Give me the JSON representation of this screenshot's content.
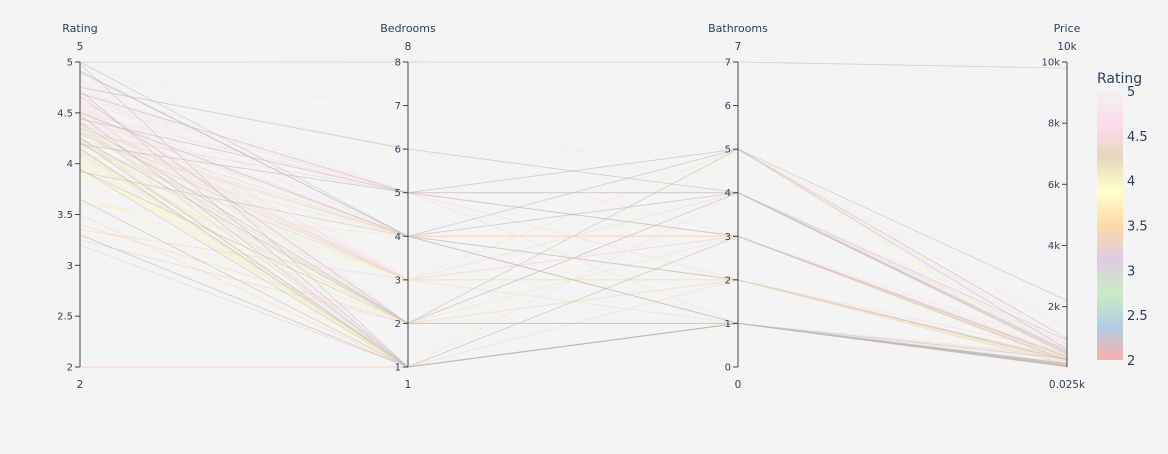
{
  "chart_data": {
    "type": "parallel_coordinates",
    "dimensions": [
      {
        "label": "Rating",
        "range": [
          2,
          5
        ],
        "range_labels": [
          "2",
          "5"
        ],
        "ticks": [
          {
            "value": 2,
            "label": "2"
          },
          {
            "value": 2.5,
            "label": "2.5"
          },
          {
            "value": 3,
            "label": "3"
          },
          {
            "value": 3.5,
            "label": "3.5"
          },
          {
            "value": 4,
            "label": "4"
          },
          {
            "value": 4.5,
            "label": "4.5"
          },
          {
            "value": 5,
            "label": "5"
          }
        ]
      },
      {
        "label": "Bedrooms",
        "range": [
          1,
          8
        ],
        "range_labels": [
          "1",
          "8"
        ],
        "ticks": [
          {
            "value": 1,
            "label": "1"
          },
          {
            "value": 2,
            "label": "2"
          },
          {
            "value": 3,
            "label": "3"
          },
          {
            "value": 4,
            "label": "4"
          },
          {
            "value": 5,
            "label": "5"
          },
          {
            "value": 6,
            "label": "6"
          },
          {
            "value": 7,
            "label": "7"
          },
          {
            "value": 8,
            "label": "8"
          }
        ]
      },
      {
        "label": "Bathrooms",
        "range": [
          0,
          7
        ],
        "range_labels": [
          "0",
          "7"
        ],
        "ticks": [
          {
            "value": 0,
            "label": "0"
          },
          {
            "value": 1,
            "label": "1"
          },
          {
            "value": 2,
            "label": "2"
          },
          {
            "value": 3,
            "label": "3"
          },
          {
            "value": 4,
            "label": "4"
          },
          {
            "value": 5,
            "label": "5"
          },
          {
            "value": 6,
            "label": "6"
          },
          {
            "value": 7,
            "label": "7"
          }
        ]
      },
      {
        "label": "Price",
        "range": [
          25,
          10000
        ],
        "range_labels": [
          "0.025k",
          "10k"
        ],
        "ticks": [
          {
            "value": 2000,
            "label": "2k"
          },
          {
            "value": 4000,
            "label": "4k"
          },
          {
            "value": 6000,
            "label": "6k"
          },
          {
            "value": 8000,
            "label": "8k"
          },
          {
            "value": 10000,
            "label": "10k"
          }
        ]
      }
    ],
    "colorbar": {
      "title": "Rating",
      "range": [
        2,
        5
      ],
      "ticks": [
        {
          "value": 2,
          "label": "2"
        },
        {
          "value": 2.5,
          "label": "2.5"
        },
        {
          "value": 3,
          "label": "3"
        },
        {
          "value": 3.5,
          "label": "3.5"
        },
        {
          "value": 4,
          "label": "4"
        },
        {
          "value": 4.5,
          "label": "4.5"
        },
        {
          "value": 5,
          "label": "5"
        }
      ],
      "colorscale": [
        "#f8b0ad",
        "#b3cde3",
        "#ccebc5",
        "#decbe4",
        "#fed9a6",
        "#ffffcc",
        "#e5d8bd",
        "#fddaec",
        "#f2f2f2"
      ]
    },
    "lines": [
      [
        5,
        8,
        7,
        9800
      ],
      [
        4.95,
        8,
        5,
        300
      ],
      [
        4.9,
        7,
        5,
        450
      ],
      [
        4.85,
        7,
        4,
        600
      ],
      [
        4.8,
        6,
        5,
        700
      ],
      [
        4.75,
        6,
        4,
        500
      ],
      [
        4.7,
        5,
        3,
        400
      ],
      [
        4.65,
        5,
        4,
        800
      ],
      [
        4.6,
        5,
        3,
        350
      ],
      [
        4.55,
        4,
        3,
        300
      ],
      [
        4.5,
        4,
        2,
        250
      ],
      [
        4.45,
        4,
        3,
        420
      ],
      [
        4.4,
        3,
        2,
        200
      ],
      [
        4.35,
        3,
        2,
        180
      ],
      [
        4.3,
        3,
        1,
        150
      ],
      [
        4.25,
        2,
        1,
        120
      ],
      [
        4.2,
        2,
        1,
        100
      ],
      [
        4.15,
        1,
        1,
        90
      ],
      [
        4.1,
        1,
        1,
        80
      ],
      [
        4.05,
        1,
        1,
        70
      ],
      [
        4.98,
        1,
        1,
        110
      ],
      [
        4.92,
        2,
        1,
        140
      ],
      [
        4.88,
        3,
        2,
        260
      ],
      [
        4.82,
        4,
        2,
        320
      ],
      [
        4.78,
        5,
        3,
        500
      ],
      [
        4.72,
        1,
        1,
        95
      ],
      [
        4.68,
        2,
        2,
        170
      ],
      [
        4.62,
        3,
        2,
        220
      ],
      [
        4.58,
        1,
        1,
        85
      ],
      [
        4.52,
        2,
        1,
        130
      ],
      [
        4.48,
        1,
        1,
        75
      ],
      [
        4.42,
        3,
        3,
        300
      ],
      [
        4.38,
        1,
        1,
        65
      ],
      [
        4.32,
        2,
        1,
        105
      ],
      [
        4.28,
        4,
        3,
        380
      ],
      [
        4.22,
        1,
        1,
        60
      ],
      [
        4.18,
        3,
        2,
        190
      ],
      [
        4.12,
        1,
        1,
        55
      ],
      [
        4.08,
        2,
        1,
        115
      ],
      [
        4.02,
        1,
        1,
        50
      ],
      [
        3.95,
        1,
        1,
        60
      ],
      [
        3.9,
        2,
        1,
        90
      ],
      [
        3.85,
        3,
        2,
        150
      ],
      [
        3.8,
        1,
        1,
        70
      ],
      [
        3.7,
        2,
        2,
        120
      ],
      [
        3.65,
        1,
        1,
        55
      ],
      [
        3.6,
        4,
        3,
        300
      ],
      [
        3.5,
        1,
        1,
        45
      ],
      [
        3.4,
        2,
        1,
        80
      ],
      [
        3.35,
        3,
        3,
        200
      ],
      [
        3.3,
        1,
        1,
        40
      ],
      [
        3.25,
        2,
        2,
        110
      ],
      [
        3.2,
        1,
        1,
        35
      ],
      [
        2,
        1,
        1,
        30
      ],
      [
        5,
        5,
        5,
        1500
      ],
      [
        5,
        4,
        5,
        2200
      ],
      [
        5,
        1,
        7,
        1000
      ],
      [
        5,
        3,
        1,
        2500
      ],
      [
        4.97,
        6,
        5,
        1800
      ],
      [
        4.93,
        8,
        6,
        1200
      ],
      [
        4.9,
        4,
        4,
        900
      ],
      [
        4.87,
        5,
        4,
        1100
      ],
      [
        4.8,
        2,
        3,
        600
      ],
      [
        4.76,
        6,
        3,
        700
      ],
      [
        4.7,
        4,
        5,
        1300
      ],
      [
        4.66,
        2,
        5,
        950
      ],
      [
        4.6,
        3,
        5,
        800
      ],
      [
        4.55,
        1,
        4,
        650
      ],
      [
        4.5,
        5,
        2,
        500
      ],
      [
        4.45,
        3,
        4,
        750
      ],
      [
        4.4,
        2,
        4,
        550
      ],
      [
        4.35,
        4,
        1,
        400
      ],
      [
        4.3,
        5,
        1,
        350
      ],
      [
        4.25,
        1,
        2,
        300
      ],
      [
        4.2,
        3,
        1,
        260
      ],
      [
        4.15,
        1,
        3,
        240
      ],
      [
        4.1,
        4,
        2,
        200
      ],
      [
        4.05,
        2,
        3,
        180
      ],
      [
        4.0,
        1,
        5,
        160
      ],
      [
        3.98,
        3,
        5,
        1000
      ],
      [
        3.92,
        4,
        1,
        140
      ],
      [
        3.87,
        2,
        5,
        120
      ],
      [
        4.99,
        5,
        1,
        350
      ],
      [
        4.96,
        2,
        1,
        230
      ],
      [
        4.94,
        3,
        1,
        260
      ],
      [
        4.91,
        4,
        1,
        300
      ],
      [
        4.86,
        1,
        2,
        200
      ],
      [
        4.83,
        2,
        2,
        240
      ],
      [
        4.79,
        3,
        3,
        280
      ],
      [
        4.74,
        4,
        4,
        400
      ],
      [
        4.69,
        5,
        5,
        600
      ],
      [
        4.64,
        1,
        1,
        150
      ],
      [
        4.59,
        2,
        2,
        210
      ],
      [
        4.54,
        3,
        3,
        270
      ],
      [
        4.49,
        4,
        3,
        330
      ],
      [
        4.44,
        5,
        4,
        450
      ],
      [
        4.39,
        1,
        1,
        130
      ],
      [
        4.34,
        2,
        1,
        160
      ],
      [
        4.29,
        3,
        2,
        230
      ],
      [
        4.24,
        4,
        2,
        290
      ],
      [
        4.19,
        5,
        3,
        360
      ],
      [
        4.14,
        1,
        1,
        110
      ],
      [
        4.09,
        2,
        2,
        150
      ],
      [
        4.04,
        3,
        2,
        210
      ],
      [
        3.99,
        1,
        1,
        95
      ],
      [
        3.94,
        2,
        1,
        135
      ]
    ]
  }
}
